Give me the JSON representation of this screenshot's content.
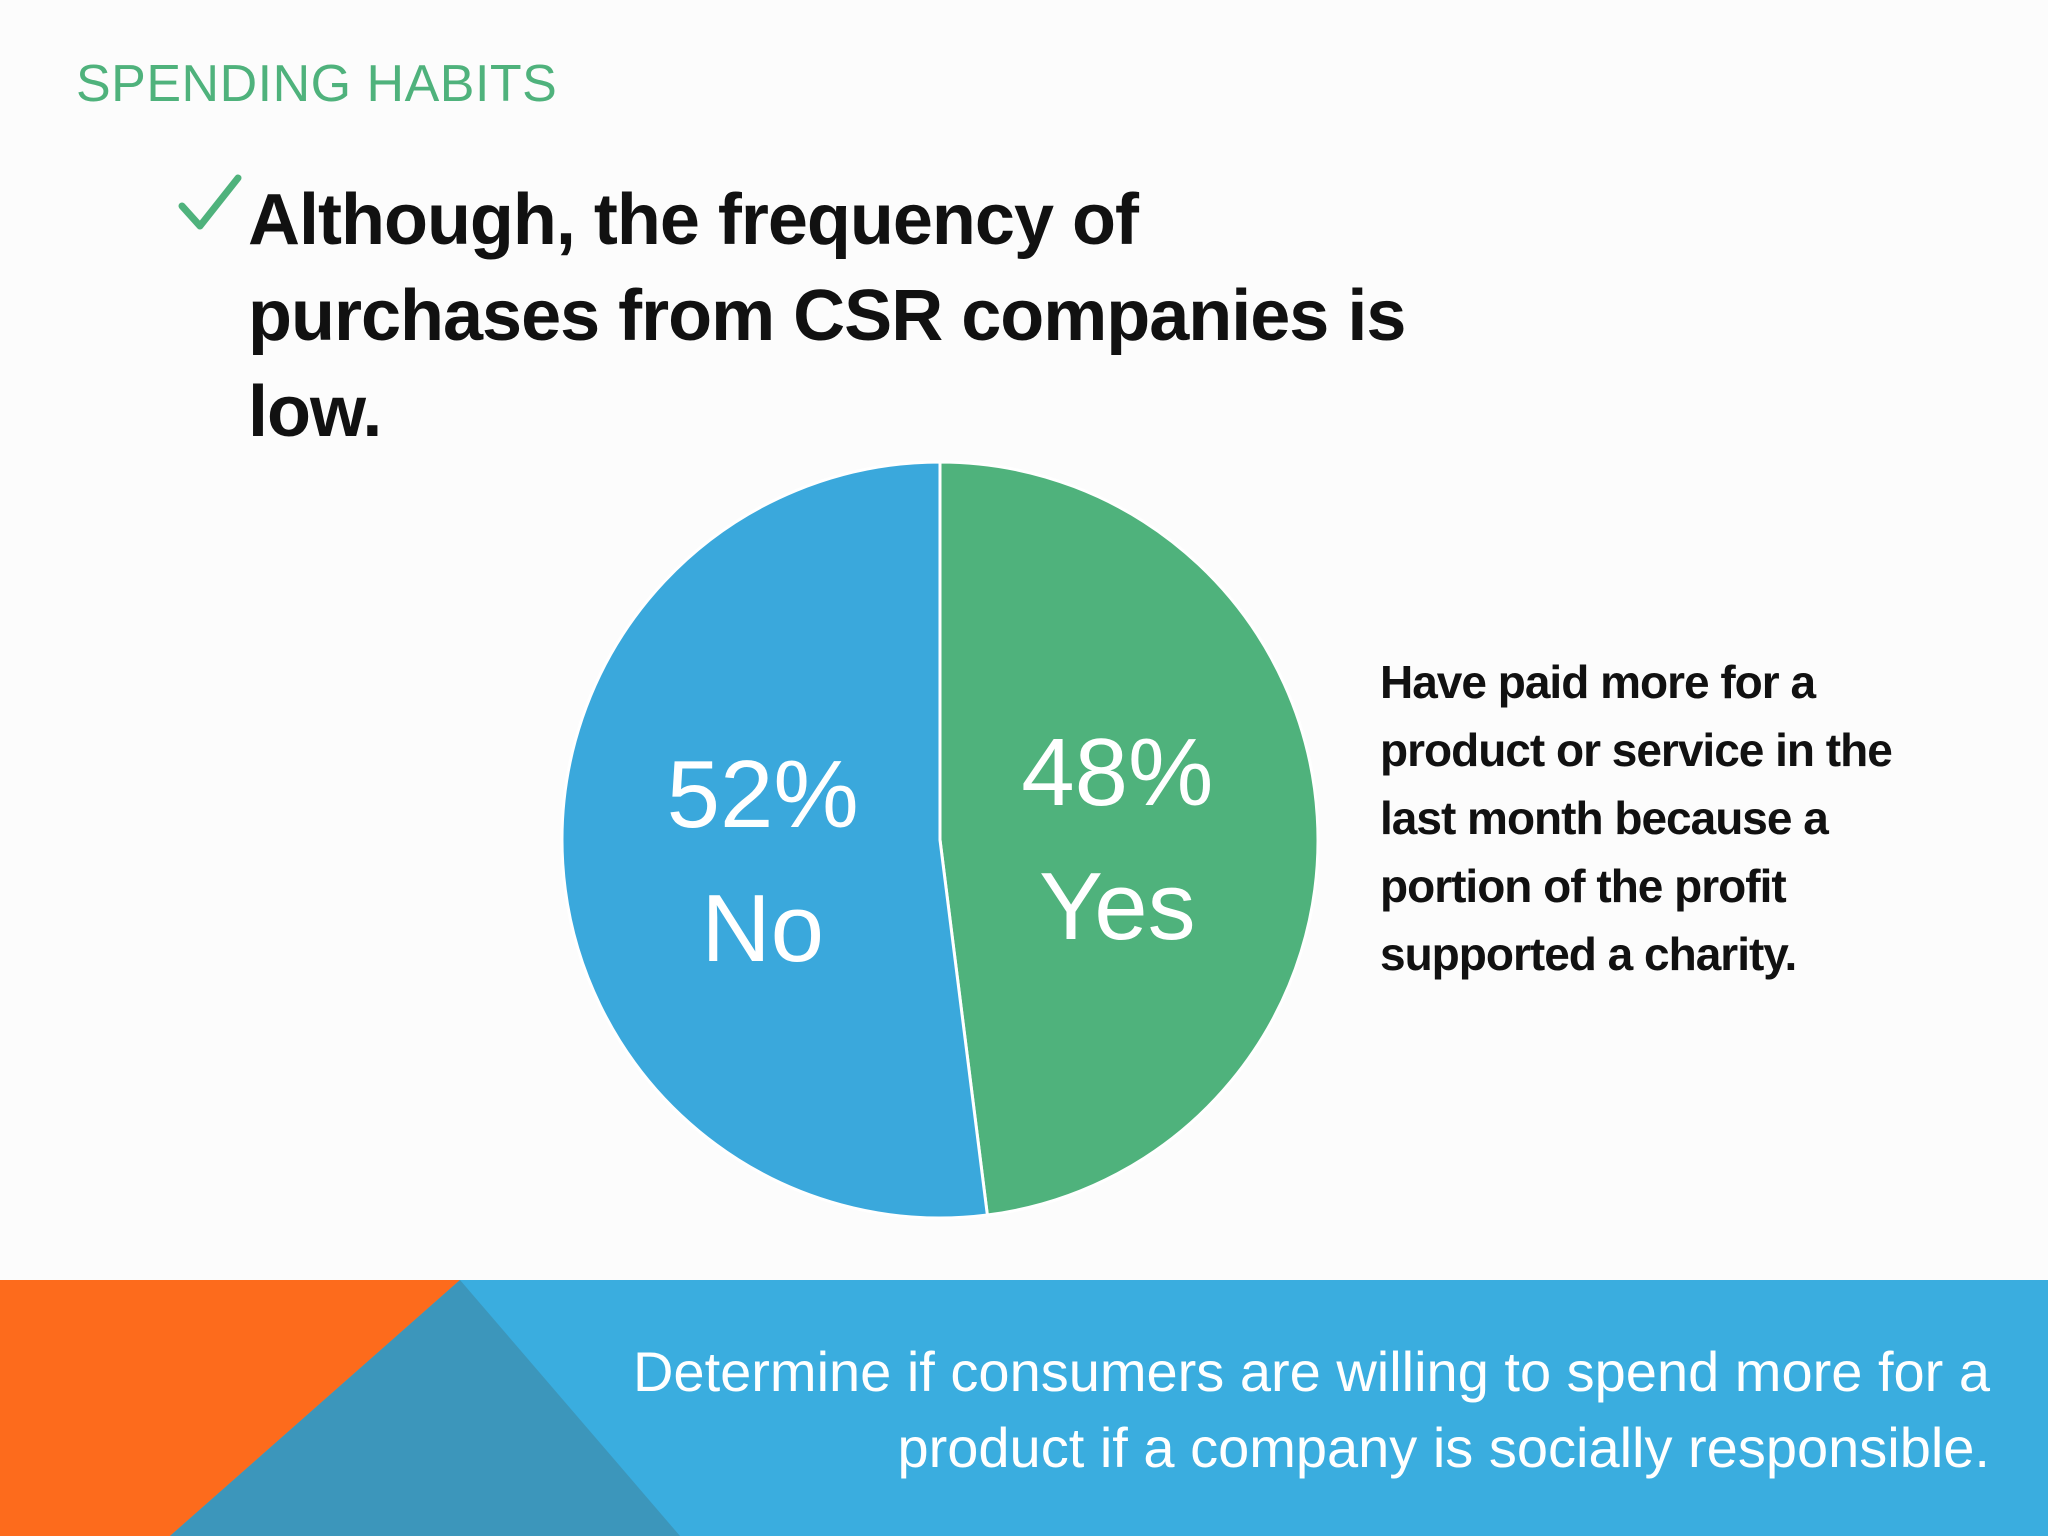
{
  "slide": {
    "section_title": "SPENDING HABITS",
    "bullet_text": "Although, the frequency of purchases from CSR companies is low.",
    "caption": "Have paid more for a product or service in the last month because a portion of the profit supported a charity.",
    "footer_text": "Determine if consumers are willing to spend more for a product if a company is socially responsible."
  },
  "icons": {
    "bullet": "checkmark-icon"
  },
  "colors": {
    "accent_green": "#4fb27c",
    "pie_yes": "#4fb27c",
    "pie_no": "#3aa8dc",
    "footer_blue": "#3aaddf",
    "footer_orange": "#fd6b1c",
    "footer_dark_blue": "#3c96bb"
  },
  "chart_data": {
    "type": "pie",
    "slices": [
      {
        "label": "Yes",
        "value": 48,
        "display": "48%",
        "color": "#4fb27c"
      },
      {
        "label": "No",
        "value": 52,
        "display": "52%",
        "color": "#3aa8dc"
      }
    ],
    "start": "top",
    "direction": "clockwise"
  }
}
